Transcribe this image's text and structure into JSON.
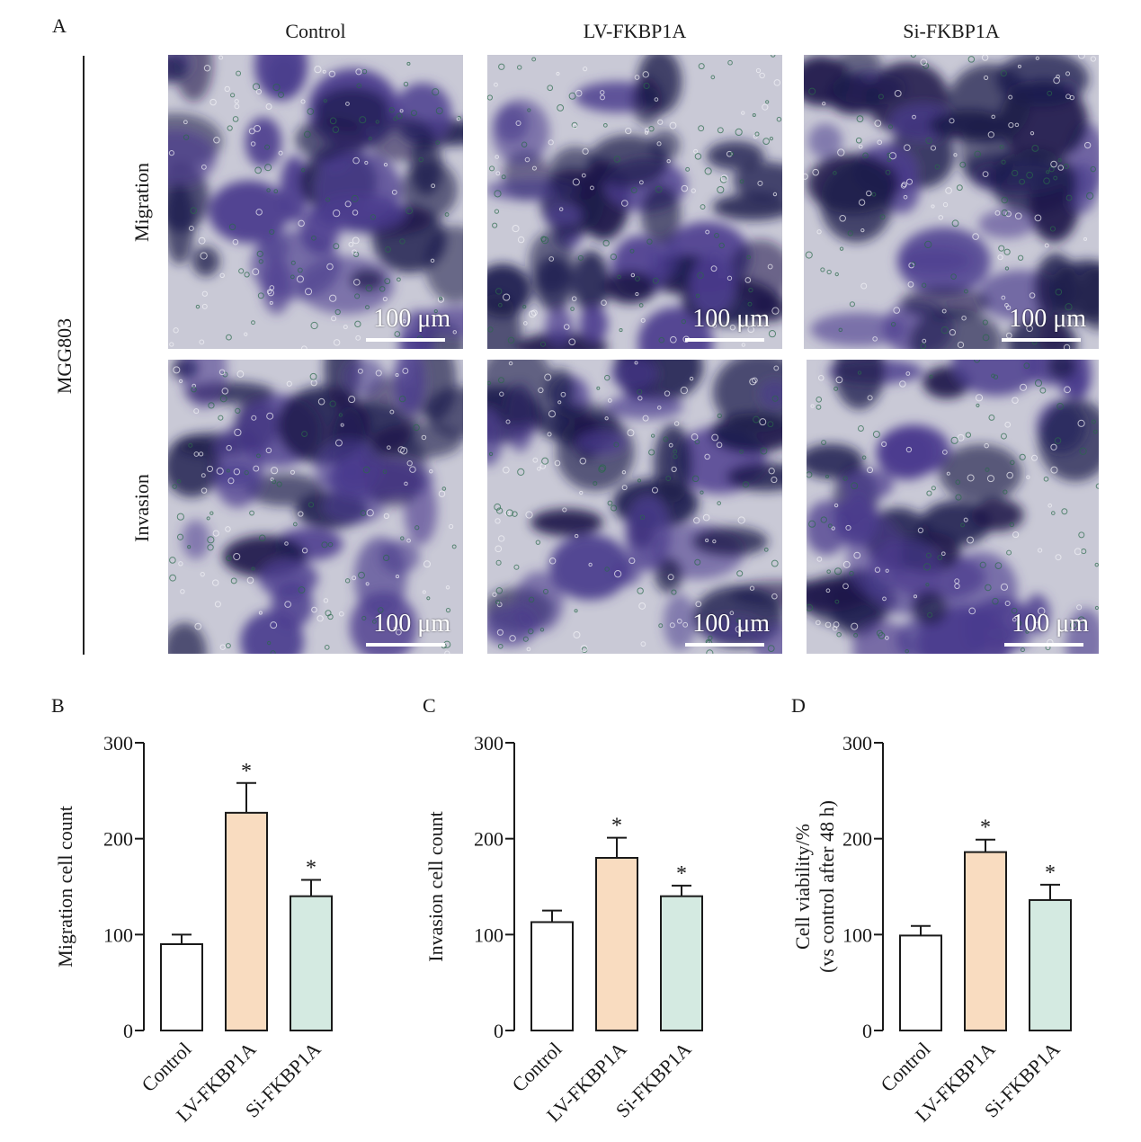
{
  "panel_labels": [
    "A",
    "B",
    "C",
    "D"
  ],
  "figure_a": {
    "columns": [
      "Control",
      "LV-FKBP1A",
      "Si-FKBP1A"
    ],
    "rows": [
      "Migration",
      "Invasion"
    ],
    "cell_line": "MGG803",
    "scale_bar_label": "100 μm"
  },
  "colors": {
    "control": "#ffffff",
    "lv_fkbp1a": "#f9dcc0",
    "si_fkbp1a": "#d4eae1",
    "stain_dark": "#1b1a4a",
    "stain_mid": "#4b3c8e",
    "background_light": "#c9c9d6"
  },
  "chart_data": [
    {
      "type": "bar",
      "panel": "B",
      "ylabel": "Migration cell count",
      "categories": [
        "Control",
        "LV-FKBP1A",
        "Si-FKBP1A"
      ],
      "values": [
        90,
        227,
        140
      ],
      "errors": [
        10,
        31,
        17
      ],
      "significance": [
        "",
        "*",
        "*"
      ],
      "ylim": [
        0,
        300
      ],
      "yticks": [
        0,
        100,
        200,
        300
      ]
    },
    {
      "type": "bar",
      "panel": "C",
      "ylabel": "Invasion cell count",
      "categories": [
        "Control",
        "LV-FKBP1A",
        "Si-FKBP1A"
      ],
      "values": [
        113,
        180,
        140
      ],
      "errors": [
        12,
        21,
        11
      ],
      "significance": [
        "",
        "*",
        "*"
      ],
      "ylim": [
        0,
        300
      ],
      "yticks": [
        0,
        100,
        200,
        300
      ]
    },
    {
      "type": "bar",
      "panel": "D",
      "ylabel": "Cell viability/%",
      "ylabel2": "(vs control after 48 h)",
      "categories": [
        "Control",
        "LV-FKBP1A",
        "Si-FKBP1A"
      ],
      "values": [
        99,
        186,
        136
      ],
      "errors": [
        10,
        13,
        16
      ],
      "significance": [
        "",
        "*",
        "*"
      ],
      "ylim": [
        0,
        300
      ],
      "yticks": [
        0,
        100,
        200,
        300
      ]
    }
  ]
}
